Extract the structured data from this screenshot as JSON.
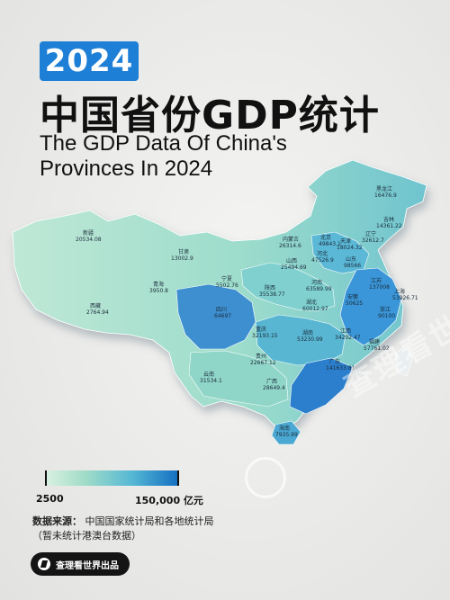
{
  "badge": {
    "year": "2024"
  },
  "title": {
    "cn": "中国省份GDP统计",
    "en": "The GDP Data Of China's Provinces In 2024"
  },
  "legend": {
    "min_label": "2500",
    "max_label": "150,000 亿元"
  },
  "source": {
    "label": "数据来源：",
    "text": "中国国家统计局和各地统计局",
    "note": "（暂未统计港澳台数据）"
  },
  "brand": {
    "name": "查理看世界出品"
  },
  "watermark": {
    "text": "查理看世界"
  },
  "colors": {
    "accent": "#1e7fd6",
    "low": "#d8f0e0",
    "high": "#1670c2"
  },
  "provinces": [
    {
      "name": "黑龙江",
      "value": "16476.9"
    },
    {
      "name": "吉林",
      "value": "14361.22"
    },
    {
      "name": "辽宁",
      "value": "32612.7"
    },
    {
      "name": "北京",
      "value": "49843.1"
    },
    {
      "name": "天津",
      "value": "18024.32"
    },
    {
      "name": "内蒙古",
      "value": "26314.6"
    },
    {
      "name": "新疆",
      "value": "20534.08"
    },
    {
      "name": "甘肃",
      "value": "13002.9"
    },
    {
      "name": "河北",
      "value": "47526.9"
    },
    {
      "name": "山东",
      "value": "98566"
    },
    {
      "name": "山西",
      "value": "25494.69"
    },
    {
      "name": "青海",
      "value": "3950.8"
    },
    {
      "name": "宁夏",
      "value": "5502.76"
    },
    {
      "name": "陕西",
      "value": "35538.77"
    },
    {
      "name": "河南",
      "value": "63589.99"
    },
    {
      "name": "江苏",
      "value": "137008"
    },
    {
      "name": "上海",
      "value": "53926.71"
    },
    {
      "name": "西藏",
      "value": "2764.94"
    },
    {
      "name": "四川",
      "value": "64697"
    },
    {
      "name": "湖北",
      "value": "60012.97"
    },
    {
      "name": "安徽",
      "value": "50625"
    },
    {
      "name": "浙江",
      "value": "90100"
    },
    {
      "name": "重庆",
      "value": "32193.15"
    },
    {
      "name": "湖南",
      "value": "53230.99"
    },
    {
      "name": "江西",
      "value": "34202.47"
    },
    {
      "name": "福建",
      "value": "57761.02"
    },
    {
      "name": "贵州",
      "value": "22667.12"
    },
    {
      "name": "云南",
      "value": "31534.1"
    },
    {
      "name": "广西",
      "value": "28649.4"
    },
    {
      "name": "广东",
      "value": "141633.81"
    },
    {
      "name": "海南",
      "value": "7935.99"
    }
  ]
}
